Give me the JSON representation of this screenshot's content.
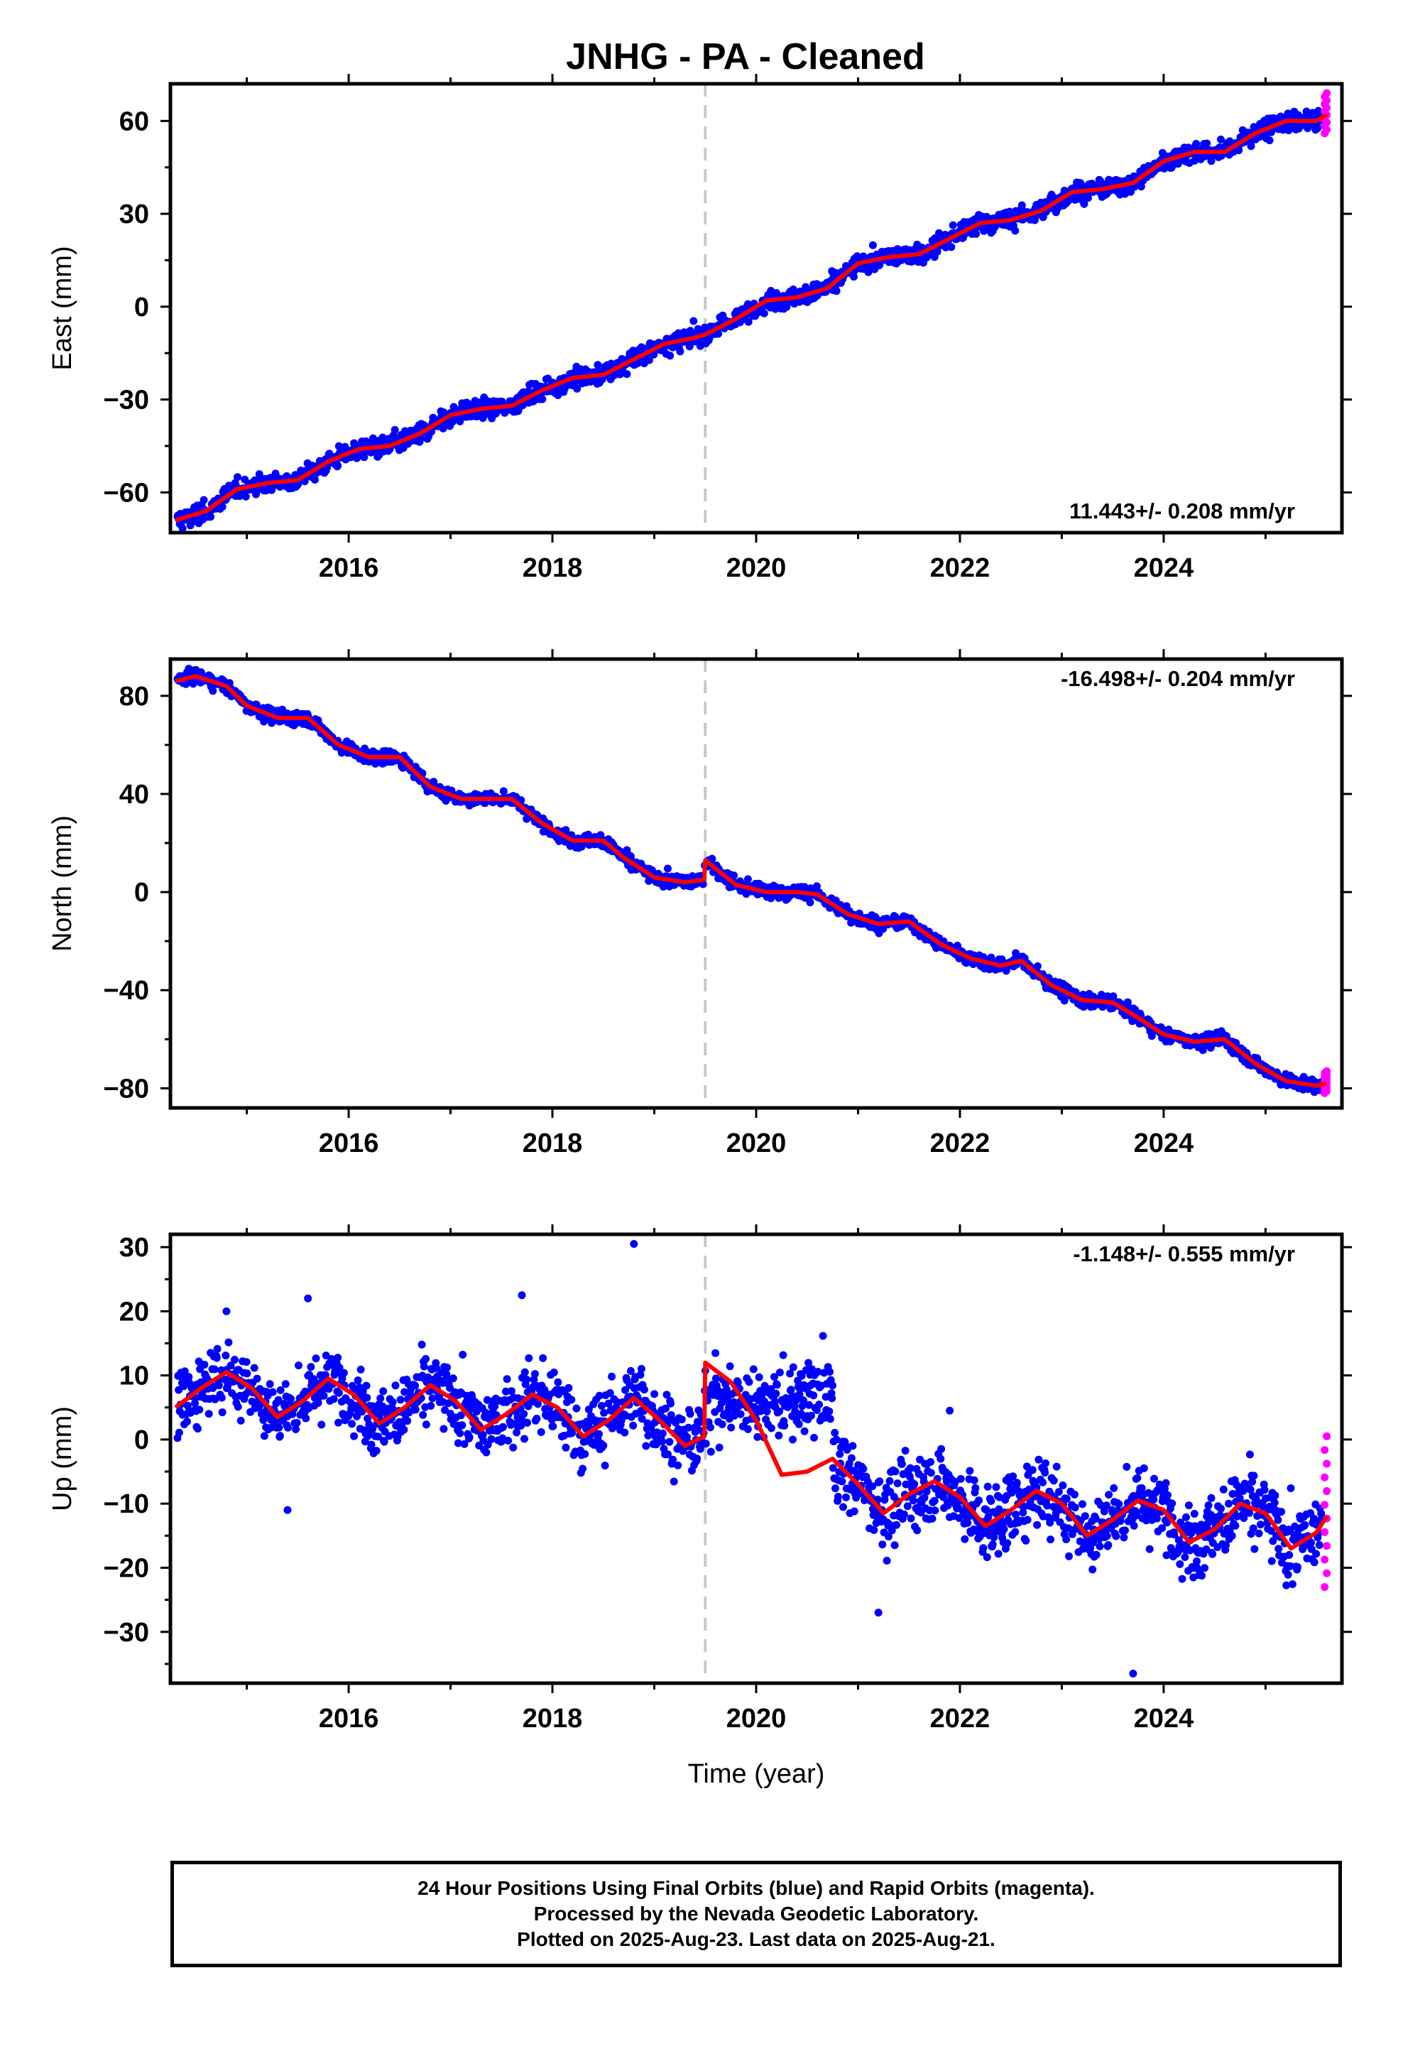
{
  "title": "JNHG  - PA - Cleaned",
  "colors": {
    "final_orbits": "#0000ff",
    "rapid_orbits": "#ff00ff",
    "model": "#ff0000",
    "event_line": "#c8c8c8",
    "frame": "#000000"
  },
  "chart_data": [
    {
      "type": "scatter",
      "ylabel": "East (mm)",
      "xlabel": "",
      "xlim": [
        2014.25,
        2025.75
      ],
      "ylim": [
        -73,
        72
      ],
      "yticks": [
        -60,
        -30,
        0,
        30,
        60
      ],
      "ytick_labels": [
        "−60",
        "−30",
        "0",
        "30",
        "60"
      ],
      "xticks": [
        2016,
        2018,
        2020,
        2022,
        2024
      ],
      "xtick_labels": [
        "2016",
        "2018",
        "2020",
        "2022",
        "2024"
      ],
      "rate_label": "11.443+/- 0.208 mm/yr",
      "rate_position": "bottom-right",
      "event_line_x": 2019.5,
      "model_curve": {
        "name": "model",
        "x": [
          2014.3,
          2014.6,
          2014.9,
          2015.2,
          2015.5,
          2015.8,
          2016.1,
          2016.4,
          2016.7,
          2017.0,
          2017.3,
          2017.6,
          2017.9,
          2018.2,
          2018.5,
          2018.8,
          2019.1,
          2019.4,
          2019.5,
          2019.8,
          2020.1,
          2020.4,
          2020.7,
          2021.0,
          2021.3,
          2021.6,
          2021.9,
          2022.2,
          2022.5,
          2022.8,
          2023.1,
          2023.4,
          2023.7,
          2024.0,
          2024.3,
          2024.6,
          2024.9,
          2025.2,
          2025.5,
          2025.6
        ],
        "y": [
          -69,
          -66,
          -59,
          -57,
          -56,
          -50,
          -46,
          -45,
          -41,
          -35,
          -33,
          -32,
          -27,
          -23,
          -22,
          -17,
          -12,
          -10,
          -9,
          -4,
          2,
          3,
          6,
          14,
          16,
          17,
          22,
          27,
          28,
          31,
          37,
          38,
          40,
          47,
          50,
          50,
          56,
          60,
          60,
          62
        ]
      },
      "scatter_spread": 2.2,
      "rapid_orbits": {
        "x": 2025.58,
        "y_range": [
          56,
          69
        ]
      }
    },
    {
      "type": "scatter",
      "ylabel": "North (mm)",
      "xlabel": "",
      "xlim": [
        2014.25,
        2025.75
      ],
      "ylim": [
        -88,
        95
      ],
      "yticks": [
        -80,
        -40,
        0,
        40,
        80
      ],
      "ytick_labels": [
        "−80",
        "−40",
        "0",
        "40",
        "80"
      ],
      "xticks": [
        2016,
        2018,
        2020,
        2022,
        2024
      ],
      "xtick_labels": [
        "2016",
        "2018",
        "2020",
        "2022",
        "2024"
      ],
      "rate_label": "-16.498+/- 0.204 mm/yr",
      "rate_position": "top-right",
      "event_line_x": 2019.5,
      "model_curve": {
        "name": "model",
        "x": [
          2014.3,
          2014.5,
          2014.8,
          2015.0,
          2015.3,
          2015.6,
          2015.9,
          2016.2,
          2016.5,
          2016.8,
          2017.1,
          2017.4,
          2017.6,
          2017.9,
          2018.2,
          2018.5,
          2018.7,
          2019.0,
          2019.3,
          2019.49,
          2019.5,
          2019.8,
          2020.1,
          2020.4,
          2020.6,
          2020.9,
          2021.2,
          2021.5,
          2021.8,
          2022.1,
          2022.4,
          2022.6,
          2022.9,
          2023.2,
          2023.5,
          2023.7,
          2024.0,
          2024.3,
          2024.6,
          2024.9,
          2025.2,
          2025.5,
          2025.6
        ],
        "y": [
          86,
          88,
          84,
          76,
          71,
          71,
          60,
          55,
          55,
          43,
          38,
          38,
          38,
          28,
          21,
          21,
          14,
          6,
          4,
          5,
          13,
          3,
          0,
          0,
          -1,
          -9,
          -13,
          -12,
          -21,
          -27,
          -30,
          -28,
          -38,
          -44,
          -45,
          -50,
          -58,
          -61,
          -60,
          -70,
          -77,
          -79,
          -78
        ]
      },
      "scatter_spread": 2.0,
      "rapid_orbits": {
        "x": 2025.58,
        "y_range": [
          -82,
          -73
        ]
      }
    },
    {
      "type": "scatter",
      "ylabel": "Up (mm)",
      "xlabel": "Time (year)",
      "xlim": [
        2014.25,
        2025.75
      ],
      "ylim": [
        -38,
        32
      ],
      "yticks": [
        -30,
        -20,
        -10,
        0,
        10,
        20,
        30
      ],
      "ytick_labels": [
        "−30",
        "−20",
        "−10",
        "0",
        "10",
        "20",
        "30"
      ],
      "xticks": [
        2016,
        2018,
        2020,
        2022,
        2024
      ],
      "xtick_labels": [
        "2016",
        "2018",
        "2020",
        "2022",
        "2024"
      ],
      "rate_label": "-1.148+/- 0.555 mm/yr",
      "rate_position": "top-right",
      "event_line_x": 2019.5,
      "model_curve": {
        "name": "model",
        "x": [
          2014.3,
          2014.55,
          2014.8,
          2015.05,
          2015.3,
          2015.55,
          2015.8,
          2016.05,
          2016.3,
          2016.55,
          2016.8,
          2017.05,
          2017.3,
          2017.55,
          2017.8,
          2018.05,
          2018.3,
          2018.55,
          2018.8,
          2019.05,
          2019.3,
          2019.49,
          2019.5,
          2019.75,
          2020.0,
          2020.25,
          2020.5,
          2020.75,
          2021.0,
          2021.25,
          2021.5,
          2021.75,
          2022.0,
          2022.25,
          2022.5,
          2022.75,
          2023.0,
          2023.25,
          2023.5,
          2023.75,
          2024.0,
          2024.25,
          2024.5,
          2024.75,
          2025.0,
          2025.25,
          2025.5,
          2025.6
        ],
        "y": [
          5,
          8,
          10.5,
          8,
          3.5,
          6,
          9.5,
          7,
          2.5,
          5,
          8.5,
          6,
          1.5,
          4,
          7,
          5,
          0.5,
          3,
          6.5,
          3,
          -1,
          0.5,
          12,
          9,
          3,
          -5.5,
          -5,
          -3,
          -7,
          -11.5,
          -8.5,
          -6.5,
          -9,
          -13.5,
          -11,
          -8,
          -10,
          -15,
          -12.5,
          -9.5,
          -11,
          -16,
          -14,
          -10,
          -11.5,
          -17,
          -14.5,
          -12
        ]
      },
      "scatter_spread": 3.8,
      "outliers": [
        [
          2018.8,
          30.5
        ],
        [
          2014.8,
          20
        ],
        [
          2015.6,
          22
        ],
        [
          2017.7,
          22.5
        ],
        [
          2023.7,
          -36.5
        ],
        [
          2021.9,
          4.5
        ],
        [
          2015.4,
          -11
        ],
        [
          2021.2,
          -27
        ],
        [
          2022.9,
          -6
        ]
      ],
      "rapid_orbits": {
        "x": 2025.58,
        "y_range": [
          -23,
          0.5
        ]
      }
    }
  ],
  "footer": {
    "line1": "24 Hour Positions Using Final Orbits (blue) and Rapid Orbits (magenta).",
    "line2": "Processed by the Nevada Geodetic Laboratory.",
    "line3": "Plotted on 2025-Aug-23. Last data on 2025-Aug-21."
  }
}
